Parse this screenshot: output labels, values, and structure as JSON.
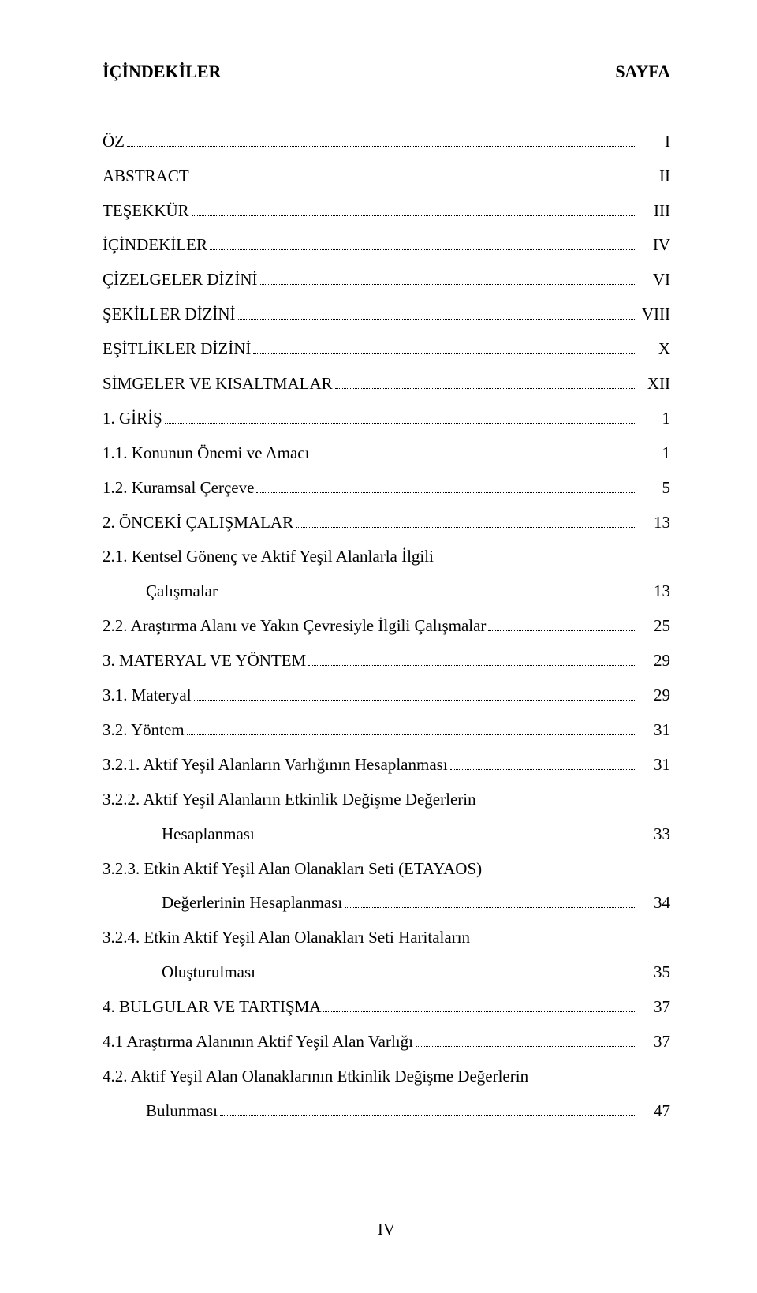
{
  "header": {
    "left": "İÇİNDEKİLER",
    "right": "SAYFA"
  },
  "entries": [
    {
      "label": "ÖZ",
      "page": "I",
      "indent": 0
    },
    {
      "label": "ABSTRACT",
      "page": "II",
      "indent": 0
    },
    {
      "label": "TEŞEKKÜR",
      "page": "III",
      "indent": 0
    },
    {
      "label": "İÇİNDEKİLER",
      "page": "IV",
      "indent": 0
    },
    {
      "label": "ÇİZELGELER DİZİNİ",
      "page": "VI",
      "indent": 0
    },
    {
      "label": "ŞEKİLLER DİZİNİ",
      "page": "VIII",
      "indent": 0
    },
    {
      "label": "EŞİTLİKLER DİZİNİ",
      "page": "X",
      "indent": 0
    },
    {
      "label": "SİMGELER VE KISALTMALAR",
      "page": "XII",
      "indent": 0
    },
    {
      "label": "1. GİRİŞ",
      "page": "1",
      "indent": 0
    },
    {
      "label": "1.1. Konunun Önemi ve Amacı",
      "page": "1",
      "indent": 1
    },
    {
      "label": "1.2. Kuramsal Çerçeve",
      "page": "5",
      "indent": 1
    },
    {
      "label": "2. ÖNCEKİ ÇALIŞMALAR",
      "page": "13",
      "indent": 0
    },
    {
      "label1": "2.1. Kentsel   Gönenç   ve   Aktif   Yeşil   Alanlarla   İlgili",
      "label2": "Çalışmalar",
      "page": "13",
      "indent": 1,
      "contIndentClass": "indent-continue-1",
      "multiline": true
    },
    {
      "label": "2.2. Araştırma Alanı ve Yakın Çevresiyle İlgili Çalışmalar",
      "page": "25",
      "indent": 1
    },
    {
      "label": "3. MATERYAL VE YÖNTEM",
      "page": "29",
      "indent": 0
    },
    {
      "label": "3.1. Materyal",
      "page": "29",
      "indent": 1
    },
    {
      "label": "3.2. Yöntem",
      "page": "31",
      "indent": 1
    },
    {
      "label": "3.2.1. Aktif Yeşil Alanların Varlığının Hesaplanması",
      "page": "31",
      "indent": 2
    },
    {
      "label1": "3.2.2. Aktif Yeşil Alanların Etkinlik Değişme Değerlerin",
      "label2": "Hesaplanması",
      "page": "33",
      "indent": 2,
      "contIndentClass": "indent-continue-2",
      "multiline": true
    },
    {
      "label1": "3.2.3. Etkin Aktif Yeşil Alan Olanakları Seti (ETAYAOS)",
      "label2": "Değerlerinin Hesaplanması",
      "page": "34",
      "indent": 2,
      "contIndentClass": "indent-continue-2",
      "multiline": true
    },
    {
      "label1": "3.2.4. Etkin Aktif Yeşil Alan Olanakları Seti Haritaların",
      "label2": "Oluşturulması",
      "page": "35",
      "indent": 2,
      "contIndentClass": "indent-continue-2",
      "multiline": true
    },
    {
      "label": "4. BULGULAR VE TARTIŞMA",
      "page": "37",
      "indent": 0
    },
    {
      "label": "4.1 Araştırma Alanının Aktif Yeşil Alan Varlığı",
      "page": "37",
      "indent": 1
    },
    {
      "label1": "4.2. Aktif Yeşil Alan Olanaklarının Etkinlik Değişme Değerlerin",
      "label2": "Bulunması",
      "page": "47",
      "indent": 1,
      "contIndentClass": "indent-continue-1",
      "multiline": true
    }
  ],
  "footer": "IV"
}
